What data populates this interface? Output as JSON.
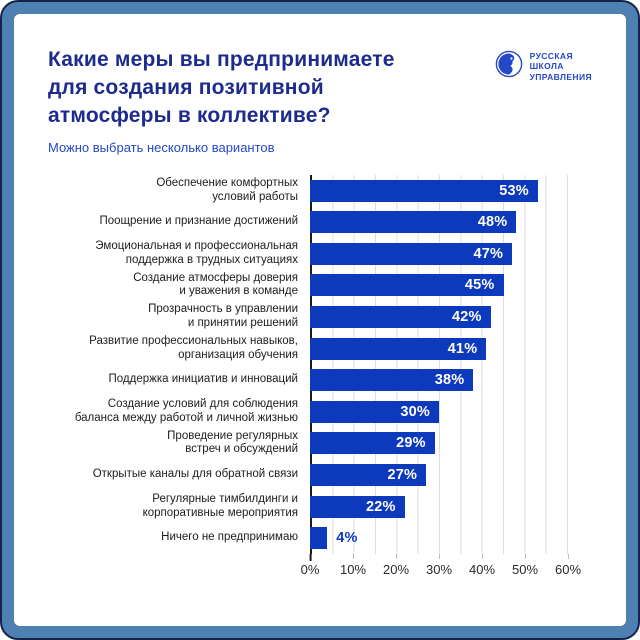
{
  "colors": {
    "bar": "#0d3abc",
    "title": "#1d2b8e",
    "accent": "#2448c8",
    "frame": "#4e80b1",
    "frame_border": "#15224d",
    "grid": "#dcdcdc"
  },
  "header": {
    "title": "Какие меры вы предпринимаете\nдля создания позитивной\nатмосферы в коллективе?",
    "subtitle": "Можно выбрать несколько вариантов",
    "logo_lines": [
      "РУССКАЯ",
      "ШКОЛА",
      "УПРАВЛЕНИЯ"
    ]
  },
  "chart_data": {
    "type": "bar",
    "orientation": "horizontal",
    "title": "Какие меры вы предпринимаете для создания позитивной атмосферы в коллективе?",
    "subtitle": "Можно выбрать несколько вариантов",
    "categories": [
      "Обеспечение комфортных\nусловий работы",
      "Поощрение и признание достижений",
      "Эмоциональная и профессиональная\nподдержка в трудных ситуациях",
      "Создание атмосферы доверия\nи уважения в команде",
      "Прозрачность в управлении\nи принятии решений",
      "Развитие профессиональных навыков,\nорганизация обучения",
      "Поддержка инициатив и инноваций",
      "Создание условий для соблюдения\nбаланса между работой и личной жизнью",
      "Проведение регулярных\nвстреч и обсуждений",
      "Открытые каналы для обратной связи",
      "Регулярные тимбилдинги и\nкорпоративные мероприятия",
      "Ничего не предпринимаю"
    ],
    "values": [
      53,
      48,
      47,
      45,
      42,
      41,
      38,
      30,
      29,
      27,
      22,
      4
    ],
    "value_suffix": "%",
    "xlim": [
      0,
      60
    ],
    "x_ticks": [
      "0%",
      "10%",
      "20%",
      "30%",
      "40%",
      "50%",
      "60%"
    ],
    "grid": "vertical minor lines every 5%, legend none",
    "value_labels": "inside bar end, white bold; outside in blue when bar too short"
  }
}
